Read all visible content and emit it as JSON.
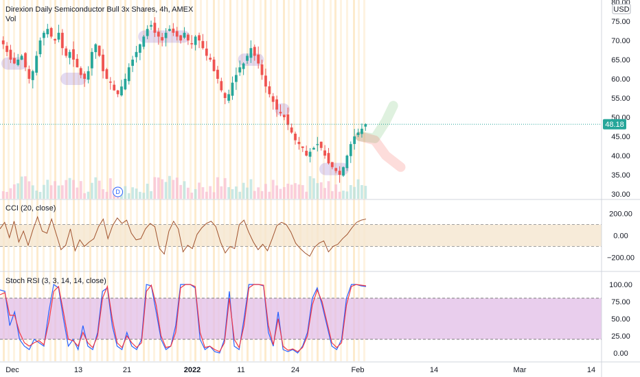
{
  "chart_data": [
    {
      "type": "candlestick",
      "title": "Direxion Daily Semiconductor Bull 3x Shares, 4h, AMEX",
      "volume_label": "Vol",
      "currency": "USD",
      "last_price": "48.18",
      "y_ticks": [
        "80.00",
        "75.00",
        "70.00",
        "65.00",
        "60.00",
        "55.00",
        "50.00",
        "45.00",
        "40.00",
        "35.00",
        "30.00"
      ],
      "ylim": [
        29,
        80
      ],
      "x_ticks": [
        "Dec",
        "13",
        "21",
        "2022",
        "11",
        "24",
        "Feb",
        "14",
        "Mar",
        "14"
      ],
      "dividend_marker": "D",
      "close_path": [
        69,
        67,
        65,
        64,
        65,
        66,
        63,
        60,
        62,
        66,
        70,
        72,
        73,
        71,
        70,
        72,
        68,
        66,
        67,
        65,
        63,
        61,
        60,
        62,
        67,
        69,
        66,
        62,
        60,
        59,
        57,
        56,
        58,
        60,
        63,
        65,
        67,
        69,
        71,
        73,
        74,
        72,
        71,
        70,
        72,
        73,
        72,
        71,
        70,
        72,
        70,
        69,
        71,
        70,
        68,
        66,
        65,
        62,
        60,
        57,
        55,
        56,
        59,
        61,
        63,
        64,
        66,
        68,
        66,
        64,
        61,
        58,
        56,
        54,
        52,
        51,
        50,
        48,
        46,
        44,
        43,
        42,
        40,
        41,
        42,
        43,
        42,
        40,
        38,
        37,
        36,
        35,
        37,
        40,
        43,
        45,
        46,
        47,
        48.18
      ],
      "highlight_zones": [
        {
          "from": 0,
          "to": 6,
          "y": 64
        },
        {
          "from": 16,
          "to": 22,
          "y": 60
        },
        {
          "from": 37,
          "to": 50,
          "y": 71
        },
        {
          "from": 64,
          "to": 70,
          "y": 65
        },
        {
          "from": 74,
          "to": 77,
          "y": 52
        },
        {
          "from": 86,
          "to": 93,
          "y": 36.5
        }
      ],
      "projections": [
        {
          "color": "#4caf50",
          "points": [
            [
              97,
              45
            ],
            [
              101,
              44.5
            ],
            [
              104,
              49
            ],
            [
              106,
              53
            ]
          ]
        },
        {
          "color": "#f44336",
          "points": [
            [
              97,
              45
            ],
            [
              101,
              44
            ],
            [
              104,
              40
            ],
            [
              108,
              37
            ]
          ]
        }
      ]
    },
    {
      "type": "line",
      "title": "CCI (20, close)",
      "y_ticks": [
        "200.00",
        "0.00",
        "−200.00"
      ],
      "ylim": [
        -260,
        260
      ],
      "band": [
        -100,
        100
      ],
      "values": [
        60,
        120,
        -20,
        130,
        -60,
        40,
        -90,
        50,
        170,
        40,
        20,
        150,
        10,
        -130,
        -90,
        60,
        -140,
        -40,
        -100,
        -60,
        -30,
        80,
        150,
        -30,
        90,
        160,
        110,
        140,
        20,
        -40,
        -30,
        60,
        110,
        80,
        -120,
        -170,
        40,
        130,
        60,
        -150,
        -90,
        -120,
        10,
        70,
        110,
        130,
        80,
        -60,
        -160,
        -100,
        -120,
        100,
        140,
        30,
        -60,
        -130,
        -80,
        -140,
        -30,
        90,
        120,
        100,
        30,
        -70,
        -120,
        -160,
        -190,
        -110,
        -70,
        -50,
        -150,
        -100,
        -80,
        -30,
        10,
        70,
        120,
        140,
        150
      ],
      "line_color": "#a0522d"
    },
    {
      "type": "line",
      "title": "Stoch RSI (3, 3, 14, 14, close)",
      "y_ticks": [
        "100.00",
        "75.00",
        "50.00",
        "25.00",
        "0.00"
      ],
      "ylim": [
        -8,
        108
      ],
      "band": [
        20,
        80
      ],
      "series": [
        {
          "color": "#2962ff",
          "values": [
            92,
            90,
            40,
            60,
            20,
            10,
            5,
            20,
            15,
            10,
            60,
            100,
            95,
            50,
            10,
            20,
            5,
            40,
            10,
            5,
            30,
            90,
            95,
            40,
            10,
            5,
            30,
            10,
            5,
            20,
            100,
            98,
            60,
            20,
            5,
            10,
            40,
            100,
            100,
            100,
            95,
            20,
            5,
            10,
            2,
            0,
            20,
            90,
            10,
            5,
            50,
            100,
            100,
            100,
            98,
            30,
            10,
            60,
            5,
            2,
            5,
            0,
            10,
            30,
            80,
            95,
            70,
            40,
            10,
            5,
            20,
            80,
            100,
            100,
            98,
            97
          ]
        },
        {
          "color": "#f23645",
          "values": [
            85,
            88,
            55,
            55,
            30,
            15,
            10,
            15,
            18,
            12,
            45,
            90,
            97,
            60,
            20,
            18,
            10,
            30,
            15,
            8,
            25,
            80,
            97,
            50,
            15,
            8,
            25,
            15,
            8,
            15,
            90,
            99,
            70,
            25,
            8,
            10,
            30,
            95,
            100,
            100,
            97,
            30,
            8,
            10,
            5,
            2,
            15,
            80,
            20,
            8,
            40,
            95,
            100,
            100,
            99,
            40,
            12,
            50,
            10,
            4,
            6,
            2,
            8,
            25,
            70,
            92,
            75,
            45,
            15,
            8,
            15,
            70,
            97,
            100,
            99,
            98
          ]
        }
      ]
    }
  ],
  "colors": {
    "up": "#26a69a",
    "down": "#ef5350",
    "grid_vertical": "#fde9c8",
    "cci_band": "#f5e6d0",
    "stoch_band": "#e1bee7",
    "price_tag": "#26a69a"
  }
}
